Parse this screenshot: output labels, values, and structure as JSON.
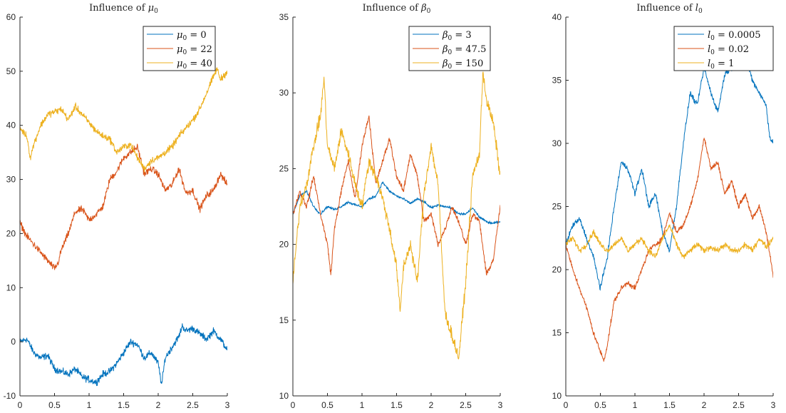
{
  "chart_data": [
    {
      "type": "line",
      "title": "Influence of μ0",
      "title_main": "Influence of ",
      "title_sym": "μ",
      "title_sub": "0",
      "xlim": [
        0,
        3
      ],
      "ylim": [
        -10,
        60
      ],
      "xticks": [
        "0",
        "0.5",
        "1",
        "1.5",
        "2",
        "2.5",
        "3"
      ],
      "yticks": [
        "-10",
        "0",
        "10",
        "20",
        "30",
        "40",
        "50",
        "60"
      ],
      "legend_position": "top-right",
      "series": [
        {
          "name": "μ0 = 0",
          "sym": "μ",
          "sub": "0",
          "eq": " = 0",
          "color": "#0072BD",
          "x": [
            0,
            0.1,
            0.2,
            0.3,
            0.4,
            0.5,
            0.6,
            0.7,
            0.8,
            0.9,
            1.0,
            1.1,
            1.2,
            1.3,
            1.4,
            1.5,
            1.6,
            1.7,
            1.8,
            1.9,
            2.0,
            2.05,
            2.1,
            2.2,
            2.3,
            2.35,
            2.4,
            2.5,
            2.6,
            2.7,
            2.8,
            2.9,
            3.0
          ],
          "y": [
            0,
            0.5,
            -2,
            -3,
            -2.5,
            -5,
            -5.5,
            -6,
            -5,
            -6.5,
            -7,
            -7.5,
            -6,
            -5.5,
            -4,
            -2,
            0,
            -0.5,
            -3,
            -2,
            -4,
            -8,
            -3,
            -1,
            1,
            3,
            2,
            2.5,
            1.5,
            0.5,
            2,
            0.5,
            -1.5
          ]
        },
        {
          "name": "μ0 = 22",
          "sym": "μ",
          "sub": "0",
          "eq": " = 22",
          "color": "#D95319",
          "x": [
            0,
            0.1,
            0.2,
            0.3,
            0.4,
            0.5,
            0.55,
            0.6,
            0.7,
            0.8,
            0.9,
            1.0,
            1.1,
            1.2,
            1.3,
            1.4,
            1.5,
            1.6,
            1.7,
            1.8,
            1.9,
            2.0,
            2.1,
            2.2,
            2.3,
            2.4,
            2.5,
            2.6,
            2.7,
            2.8,
            2.9,
            3.0
          ],
          "y": [
            22,
            19.5,
            18,
            16.5,
            15,
            13.5,
            14.5,
            17,
            20,
            24,
            24.5,
            22.5,
            23.5,
            25,
            30,
            31.5,
            34,
            35,
            36,
            31,
            32,
            31,
            28,
            29,
            32,
            27.5,
            28,
            24.5,
            27,
            28,
            31,
            29
          ]
        },
        {
          "name": "μ0 = 40",
          "sym": "μ",
          "sub": "0",
          "eq": " = 40",
          "color": "#EDB120",
          "x": [
            0,
            0.1,
            0.15,
            0.2,
            0.3,
            0.4,
            0.5,
            0.6,
            0.7,
            0.8,
            0.9,
            1.0,
            1.1,
            1.2,
            1.3,
            1.4,
            1.5,
            1.6,
            1.7,
            1.8,
            1.9,
            2.0,
            2.1,
            2.2,
            2.3,
            2.4,
            2.5,
            2.6,
            2.7,
            2.8,
            2.85,
            2.9,
            3.0
          ],
          "y": [
            39.5,
            38,
            34,
            36.5,
            40,
            42,
            42.5,
            43,
            41,
            43.5,
            42,
            40.5,
            39,
            38,
            37.5,
            35,
            36,
            36.5,
            34,
            32,
            33.5,
            34,
            35,
            36,
            38,
            39.5,
            41,
            43,
            46,
            49,
            50.5,
            48.5,
            50
          ]
        }
      ]
    },
    {
      "type": "line",
      "title": "Influence of β0",
      "title_main": "Influence of ",
      "title_sym": "β",
      "title_sub": "0",
      "xlim": [
        0,
        3
      ],
      "ylim": [
        10,
        35
      ],
      "xticks": [
        "0",
        "0.5",
        "1",
        "1.5",
        "2",
        "2.5",
        "3"
      ],
      "yticks": [
        "10",
        "15",
        "20",
        "25",
        "30",
        "35"
      ],
      "legend_position": "top-right",
      "series": [
        {
          "name": "β0 = 3",
          "sym": "β",
          "sub": "0",
          "eq": " = 3",
          "color": "#0072BD",
          "x": [
            0,
            0.1,
            0.2,
            0.3,
            0.4,
            0.5,
            0.6,
            0.7,
            0.8,
            0.9,
            1.0,
            1.1,
            1.2,
            1.3,
            1.4,
            1.5,
            1.6,
            1.7,
            1.8,
            1.9,
            2.0,
            2.1,
            2.2,
            2.3,
            2.4,
            2.5,
            2.6,
            2.7,
            2.8,
            2.9,
            3.0
          ],
          "y": [
            22,
            23.2,
            23.5,
            22.5,
            22,
            22.5,
            22.3,
            22.5,
            22.8,
            22.6,
            22.5,
            23,
            23.2,
            24.1,
            23.5,
            23.2,
            23,
            22.7,
            23,
            22.8,
            22.4,
            22.6,
            22.5,
            22.4,
            22,
            22,
            22.4,
            21.8,
            21.5,
            21.4,
            21.5
          ]
        },
        {
          "name": "β0 = 47.5",
          "sym": "β",
          "sub": "0",
          "eq": " = 47.5",
          "color": "#D95319",
          "x": [
            0,
            0.1,
            0.2,
            0.3,
            0.4,
            0.5,
            0.55,
            0.6,
            0.7,
            0.8,
            0.9,
            1.0,
            1.1,
            1.2,
            1.3,
            1.4,
            1.5,
            1.6,
            1.7,
            1.8,
            1.9,
            2.0,
            2.1,
            2.2,
            2.3,
            2.4,
            2.5,
            2.6,
            2.7,
            2.8,
            2.9,
            3.0
          ],
          "y": [
            22,
            23.5,
            22.5,
            24.5,
            22,
            20,
            18,
            21,
            23.5,
            25.5,
            23,
            26.5,
            28.5,
            24,
            25.5,
            27,
            24.5,
            23.5,
            26,
            24.5,
            21.5,
            22,
            20,
            21,
            22.5,
            21.5,
            20,
            22,
            21.5,
            18,
            19,
            22.5
          ]
        },
        {
          "name": "β0 = 150",
          "sym": "β",
          "sub": "0",
          "eq": " = 150",
          "color": "#EDB120",
          "x": [
            0,
            0.05,
            0.1,
            0.2,
            0.3,
            0.4,
            0.45,
            0.5,
            0.6,
            0.7,
            0.8,
            0.9,
            1.0,
            1.1,
            1.2,
            1.3,
            1.4,
            1.5,
            1.55,
            1.6,
            1.7,
            1.8,
            1.9,
            2.0,
            2.1,
            2.2,
            2.3,
            2.4,
            2.5,
            2.6,
            2.7,
            2.75,
            2.8,
            2.9,
            3.0
          ],
          "y": [
            17.5,
            20,
            22.5,
            24,
            26.5,
            28.5,
            31,
            26.5,
            25,
            27.5,
            26,
            24,
            22.5,
            25.5,
            24.5,
            23,
            21,
            18.5,
            15.5,
            18.5,
            20,
            17.5,
            23.5,
            26.5,
            24,
            15.5,
            14,
            12.5,
            17.5,
            24.5,
            26,
            31.5,
            29.5,
            28,
            24.5
          ]
        }
      ]
    },
    {
      "type": "line",
      "title": "Influence of l0",
      "title_main": "Influence of ",
      "title_sym": "l",
      "title_sub": "0",
      "xlim": [
        0,
        3
      ],
      "ylim": [
        10,
        40
      ],
      "xticks": [
        "0",
        "0.5",
        "1",
        "1.5",
        "2",
        "2.5",
        "3"
      ],
      "yticks": [
        "10",
        "15",
        "20",
        "25",
        "30",
        "35",
        "40"
      ],
      "legend_position": "top-right",
      "series": [
        {
          "name": "l0 = 0.0005",
          "sym": "l",
          "sub": "0",
          "eq": " = 0.0005",
          "color": "#0072BD",
          "x": [
            0,
            0.1,
            0.2,
            0.3,
            0.4,
            0.5,
            0.6,
            0.7,
            0.8,
            0.9,
            1.0,
            1.1,
            1.2,
            1.3,
            1.4,
            1.5,
            1.6,
            1.7,
            1.8,
            1.9,
            2.0,
            2.1,
            2.2,
            2.3,
            2.4,
            2.5,
            2.6,
            2.7,
            2.8,
            2.9,
            2.95,
            3.0
          ],
          "y": [
            22,
            23.5,
            24,
            22.5,
            21,
            18.5,
            21,
            25,
            28.5,
            28,
            26,
            28,
            25,
            26,
            23,
            21.5,
            25,
            30,
            34,
            33,
            36,
            34,
            32.5,
            35.5,
            36,
            38,
            37,
            35,
            34,
            33,
            30.5,
            30
          ]
        },
        {
          "name": "l0 = 0.02",
          "sym": "l",
          "sub": "0",
          "eq": " = 0.02",
          "color": "#D95319",
          "x": [
            0,
            0.1,
            0.2,
            0.3,
            0.4,
            0.5,
            0.55,
            0.6,
            0.7,
            0.8,
            0.9,
            1.0,
            1.1,
            1.2,
            1.3,
            1.4,
            1.5,
            1.6,
            1.7,
            1.8,
            1.9,
            2.0,
            2.1,
            2.2,
            2.3,
            2.4,
            2.5,
            2.6,
            2.7,
            2.8,
            2.9,
            3.0
          ],
          "y": [
            22,
            20,
            18.5,
            17,
            15,
            13.5,
            12.8,
            14,
            17.5,
            18.5,
            19,
            18.5,
            20,
            21.5,
            22,
            22.5,
            24.5,
            23,
            23.5,
            25,
            27,
            30.5,
            28,
            28.5,
            26,
            27,
            25,
            26,
            24,
            25,
            23,
            19.5
          ]
        },
        {
          "name": "l0 = 1",
          "sym": "l",
          "sub": "0",
          "eq": " = 1",
          "color": "#EDB120",
          "x": [
            0,
            0.1,
            0.2,
            0.3,
            0.4,
            0.5,
            0.6,
            0.7,
            0.8,
            0.9,
            1.0,
            1.1,
            1.2,
            1.3,
            1.4,
            1.5,
            1.6,
            1.7,
            1.8,
            1.9,
            2.0,
            2.1,
            2.2,
            2.3,
            2.4,
            2.5,
            2.6,
            2.7,
            2.8,
            2.9,
            3.0
          ],
          "y": [
            22,
            22.5,
            21.5,
            22,
            23,
            22,
            21.5,
            22,
            22.5,
            21.5,
            22,
            22.5,
            21.5,
            21,
            22.5,
            23.5,
            22,
            21,
            21.5,
            22,
            21.5,
            21.8,
            21.5,
            22,
            21.5,
            21.5,
            22,
            21.5,
            22.5,
            21.8,
            22.5
          ]
        }
      ]
    }
  ]
}
